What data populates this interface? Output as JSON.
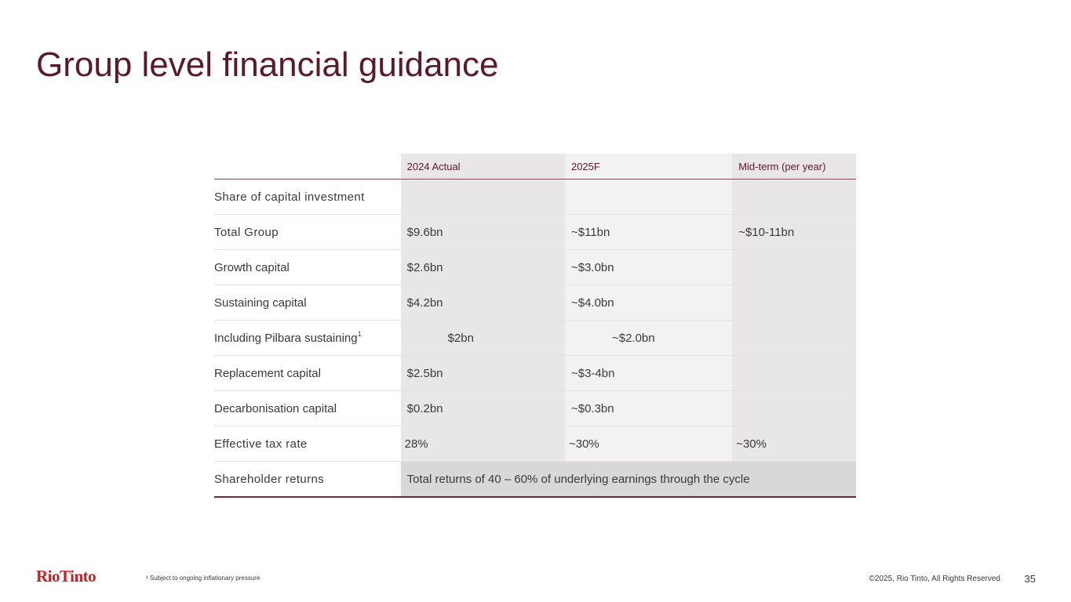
{
  "title": "Group level financial guidance",
  "table": {
    "headers": [
      "",
      "2024 Actual",
      "2025F",
      "Mid-term (per year)"
    ],
    "rows": [
      {
        "label": "Share of capital investment",
        "v2024": "",
        "v2025": "",
        "mid": ""
      },
      {
        "label": "Total Group",
        "v2024": "$9.6bn",
        "v2025": "~$11bn",
        "mid": "~$10-11bn"
      },
      {
        "label": "Growth capital",
        "v2024": "$2.6bn",
        "v2025": "~$3.0bn",
        "mid": ""
      },
      {
        "label": "Sustaining capital",
        "v2024": "$4.2bn",
        "v2025": "~$4.0bn",
        "mid": ""
      },
      {
        "label": "Including Pilbara sustaining",
        "label_sup": "1",
        "v2024": "$2bn",
        "v2025": "~$2.0bn",
        "mid": ""
      },
      {
        "label": "Replacement capital",
        "v2024": "$2.5bn",
        "v2025": "~$3-4bn",
        "mid": ""
      },
      {
        "label": "Decarbonisation capital",
        "v2024": "$0.2bn",
        "v2025": "~$0.3bn",
        "mid": ""
      },
      {
        "label": "Effective tax rate",
        "v2024": "28%",
        "v2025": "~30%",
        "mid": "~30%"
      },
      {
        "label": "Shareholder returns",
        "merged": "Total returns of 40 – 60% of underlying earnings through the cycle"
      }
    ]
  },
  "footer": {
    "logo": "RioTinto",
    "footnote": "¹ Subject to ongoing inflationary pressure",
    "copyright": "©2025, Rio Tinto, All Rights Reserved",
    "page_number": "35"
  }
}
